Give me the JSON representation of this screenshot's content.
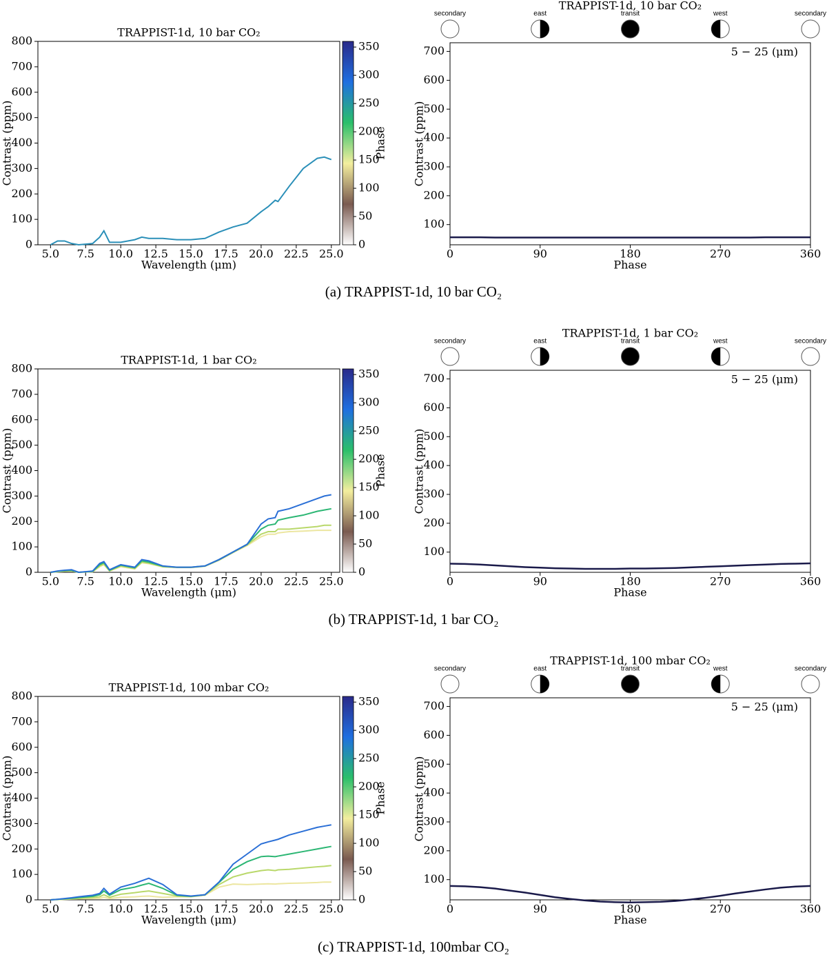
{
  "chart_data": [
    {
      "type": "line",
      "title": "TRAPPIST-1d, 10 bar CO₂",
      "xlabel": "Wavelength (μm)",
      "ylabel": "Contrast (ppm)",
      "x": [
        5,
        5.5,
        6,
        6.5,
        7,
        8,
        8.5,
        8.8,
        9.2,
        10,
        11,
        11.5,
        12,
        13,
        14,
        15,
        16,
        17,
        18,
        19,
        20,
        20.5,
        21,
        21.2,
        22,
        23,
        24,
        24.5,
        25
      ],
      "series": [
        {
          "color": "#2a8fb8",
          "values": [
            0,
            15,
            15,
            5,
            0,
            5,
            30,
            55,
            10,
            10,
            20,
            30,
            25,
            25,
            20,
            20,
            25,
            50,
            70,
            85,
            130,
            150,
            175,
            170,
            230,
            300,
            340,
            345,
            335
          ]
        }
      ],
      "xlim": [
        4.1,
        25.6
      ],
      "ylim": [
        0,
        800
      ],
      "xticks": [
        {
          "value": 5,
          "label": "5.0"
        },
        {
          "value": 7.5,
          "label": "7.5"
        },
        {
          "value": 10,
          "label": "10.0"
        },
        {
          "value": 12.5,
          "label": "12.5"
        },
        {
          "value": 15,
          "label": "15.0"
        },
        {
          "value": 17.5,
          "label": "17.5"
        },
        {
          "value": 20,
          "label": "20.0"
        },
        {
          "value": 22.5,
          "label": "22.5"
        },
        {
          "value": 25,
          "label": "25.0"
        }
      ],
      "yticks": [
        0,
        100,
        200,
        300,
        400,
        500,
        600,
        700,
        800
      ],
      "colorbar": {
        "label": "Phase",
        "lim": [
          0,
          360
        ],
        "ticks": [
          0,
          50,
          100,
          150,
          200,
          250,
          300,
          350
        ],
        "colors": [
          "#ffffff",
          "#7a5a50",
          "#f3ee9e",
          "#2bbf6a",
          "#1f6fe0",
          "#2a2a8a"
        ]
      }
    },
    {
      "type": "line",
      "title": "TRAPPIST-1d, 10 bar CO₂",
      "xlabel": "Phase",
      "ylabel": "Contrast (ppm)",
      "annotation": "5 − 25 (μm)",
      "phase_labels": [
        "secondary",
        "east",
        "transit",
        "west",
        "secondary"
      ],
      "x": [
        0,
        15,
        30,
        45,
        60,
        75,
        90,
        105,
        120,
        135,
        150,
        165,
        180,
        195,
        210,
        225,
        240,
        255,
        270,
        285,
        300,
        315,
        330,
        345,
        360
      ],
      "series": [
        {
          "color": "#1a1a4a",
          "values": [
            56,
            56,
            56,
            55,
            55,
            55,
            55,
            55,
            55,
            55,
            55,
            55,
            55,
            55,
            55,
            55,
            55,
            55,
            55,
            55,
            55,
            56,
            56,
            56,
            56
          ]
        }
      ],
      "xlim": [
        0,
        360
      ],
      "ylim": [
        30,
        730
      ],
      "xticks": [
        0,
        90,
        180,
        270,
        360
      ],
      "yticks": [
        100,
        200,
        300,
        400,
        500,
        600,
        700
      ]
    },
    {
      "type": "line",
      "title": "TRAPPIST-1d, 1 bar CO₂",
      "xlabel": "Wavelength (μm)",
      "ylabel": "Contrast (ppm)",
      "x": [
        5,
        5.5,
        6,
        6.5,
        7,
        8,
        8.5,
        8.8,
        9.2,
        10,
        11,
        11.5,
        12,
        13,
        14,
        15,
        16,
        17,
        18,
        19,
        20,
        20.5,
        21,
        21.2,
        22,
        23,
        24,
        24.5,
        25
      ],
      "series": [
        {
          "color": "#ece6a0",
          "values": [
            0,
            2,
            4,
            5,
            0,
            2,
            22,
            30,
            5,
            22,
            13,
            38,
            34,
            21,
            19,
            19,
            24,
            48,
            78,
            105,
            140,
            150,
            150,
            155,
            160,
            162,
            165,
            165,
            165
          ]
        },
        {
          "color": "#b9d86a",
          "values": [
            0,
            3,
            5,
            6,
            0,
            3,
            25,
            33,
            6,
            25,
            15,
            40,
            36,
            22,
            19,
            19,
            24,
            48,
            78,
            108,
            150,
            160,
            160,
            170,
            170,
            175,
            180,
            185,
            185
          ]
        },
        {
          "color": "#2bb673",
          "values": [
            0,
            4,
            7,
            8,
            0,
            4,
            30,
            38,
            8,
            28,
            18,
            45,
            40,
            24,
            20,
            20,
            25,
            50,
            80,
            110,
            170,
            185,
            190,
            205,
            215,
            225,
            240,
            245,
            250
          ]
        },
        {
          "color": "#2a6fd6",
          "values": [
            0,
            5,
            8,
            10,
            0,
            5,
            35,
            42,
            10,
            30,
            20,
            50,
            45,
            25,
            20,
            20,
            25,
            50,
            80,
            110,
            190,
            210,
            215,
            240,
            250,
            270,
            290,
            300,
            305
          ]
        }
      ],
      "xlim": [
        4.1,
        25.6
      ],
      "ylim": [
        0,
        800
      ],
      "xticks": [
        {
          "value": 5,
          "label": "5.0"
        },
        {
          "value": 7.5,
          "label": "7.5"
        },
        {
          "value": 10,
          "label": "10.0"
        },
        {
          "value": 12.5,
          "label": "12.5"
        },
        {
          "value": 15,
          "label": "15.0"
        },
        {
          "value": 17.5,
          "label": "17.5"
        },
        {
          "value": 20,
          "label": "20.0"
        },
        {
          "value": 22.5,
          "label": "22.5"
        },
        {
          "value": 25,
          "label": "25.0"
        }
      ],
      "yticks": [
        0,
        100,
        200,
        300,
        400,
        500,
        600,
        700,
        800
      ],
      "colorbar": {
        "label": "Phase",
        "lim": [
          0,
          360
        ],
        "ticks": [
          0,
          50,
          100,
          150,
          200,
          250,
          300,
          350
        ],
        "colors": [
          "#ffffff",
          "#7a5a50",
          "#f3ee9e",
          "#2bbf6a",
          "#1f6fe0",
          "#2a2a8a"
        ]
      }
    },
    {
      "type": "line",
      "title": "TRAPPIST-1d, 1 bar CO₂",
      "xlabel": "Phase",
      "ylabel": "Contrast (ppm)",
      "annotation": "5 − 25 (μm)",
      "phase_labels": [
        "secondary",
        "east",
        "transit",
        "west",
        "secondary"
      ],
      "x": [
        0,
        15,
        30,
        45,
        60,
        75,
        90,
        105,
        120,
        135,
        150,
        165,
        180,
        195,
        210,
        225,
        240,
        255,
        270,
        285,
        300,
        315,
        330,
        345,
        360
      ],
      "series": [
        {
          "color": "#1a1a4a",
          "values": [
            60,
            59,
            57,
            54,
            51,
            48,
            46,
            44,
            43,
            42,
            42,
            42,
            43,
            43,
            44,
            45,
            47,
            49,
            51,
            53,
            55,
            57,
            59,
            60,
            61
          ]
        }
      ],
      "xlim": [
        0,
        360
      ],
      "ylim": [
        30,
        730
      ],
      "xticks": [
        0,
        90,
        180,
        270,
        360
      ],
      "yticks": [
        100,
        200,
        300,
        400,
        500,
        600,
        700
      ]
    },
    {
      "type": "line",
      "title": "TRAPPIST-1d, 100 mbar CO₂",
      "xlabel": "Wavelength (μm)",
      "ylabel": "Contrast (ppm)",
      "x": [
        5,
        5.5,
        6,
        6.5,
        7,
        8,
        8.5,
        8.8,
        9.2,
        10,
        11,
        11.5,
        12,
        13,
        14,
        15,
        16,
        17,
        18,
        19,
        20,
        20.5,
        21,
        21.2,
        22,
        23,
        24,
        24.5,
        25
      ],
      "series": [
        {
          "color": "#ece6a0",
          "values": [
            0,
            1,
            2,
            3,
            4,
            5,
            6,
            10,
            5,
            10,
            12,
            14,
            15,
            10,
            12,
            12,
            18,
            50,
            62,
            60,
            62,
            63,
            62,
            63,
            65,
            66,
            68,
            70,
            70
          ]
        },
        {
          "color": "#b9d86a",
          "values": [
            0,
            1,
            3,
            4,
            6,
            9,
            12,
            20,
            10,
            22,
            28,
            32,
            35,
            25,
            15,
            13,
            20,
            60,
            90,
            105,
            115,
            118,
            115,
            118,
            120,
            125,
            130,
            132,
            135
          ]
        },
        {
          "color": "#2bb673",
          "values": [
            0,
            2,
            4,
            6,
            9,
            14,
            20,
            35,
            18,
            40,
            50,
            58,
            65,
            45,
            18,
            14,
            20,
            68,
            120,
            150,
            170,
            172,
            170,
            172,
            180,
            190,
            200,
            205,
            210
          ]
        },
        {
          "color": "#2a6fd6",
          "values": [
            0,
            2,
            5,
            8,
            12,
            18,
            25,
            45,
            22,
            50,
            65,
            75,
            85,
            60,
            20,
            15,
            20,
            70,
            140,
            180,
            220,
            228,
            235,
            238,
            255,
            270,
            285,
            290,
            295
          ]
        }
      ],
      "xlim": [
        4.1,
        25.6
      ],
      "ylim": [
        0,
        800
      ],
      "xticks": [
        {
          "value": 5,
          "label": "5.0"
        },
        {
          "value": 7.5,
          "label": "7.5"
        },
        {
          "value": 10,
          "label": "10.0"
        },
        {
          "value": 12.5,
          "label": "12.5"
        },
        {
          "value": 15,
          "label": "15.0"
        },
        {
          "value": 17.5,
          "label": "17.5"
        },
        {
          "value": 20,
          "label": "20.0"
        },
        {
          "value": 22.5,
          "label": "22.5"
        },
        {
          "value": 25,
          "label": "25.0"
        }
      ],
      "yticks": [
        0,
        100,
        200,
        300,
        400,
        500,
        600,
        700,
        800
      ],
      "colorbar": {
        "label": "Phase",
        "lim": [
          0,
          360
        ],
        "ticks": [
          0,
          50,
          100,
          150,
          200,
          250,
          300,
          350
        ],
        "colors": [
          "#ffffff",
          "#7a5a50",
          "#f3ee9e",
          "#2bbf6a",
          "#1f6fe0",
          "#2a2a8a"
        ]
      }
    },
    {
      "type": "line",
      "title": "TRAPPIST-1d, 100 mbar CO₂",
      "xlabel": "Phase",
      "ylabel": "Contrast (ppm)",
      "annotation": "5 − 25 (μm)",
      "phase_labels": [
        "secondary",
        "east",
        "transit",
        "west",
        "secondary"
      ],
      "x": [
        0,
        15,
        30,
        45,
        60,
        75,
        90,
        105,
        120,
        135,
        150,
        165,
        180,
        195,
        210,
        225,
        240,
        255,
        270,
        285,
        300,
        315,
        330,
        345,
        360
      ],
      "series": [
        {
          "color": "#1a1a4a",
          "values": [
            78,
            77,
            74,
            69,
            62,
            55,
            47,
            39,
            33,
            28,
            24,
            22,
            21,
            22,
            23,
            26,
            31,
            37,
            44,
            52,
            59,
            66,
            72,
            76,
            78
          ]
        }
      ],
      "xlim": [
        0,
        360
      ],
      "ylim": [
        30,
        730
      ],
      "xticks": [
        0,
        90,
        180,
        270,
        360
      ],
      "yticks": [
        100,
        200,
        300,
        400,
        500,
        600,
        700
      ]
    }
  ],
  "captions": [
    "(a) TRAPPIST-1d, 10 bar CO₂",
    "(b) TRAPPIST-1d, 1 bar CO₂",
    "(c) TRAPPIST-1d, 100mbar CO₂"
  ]
}
